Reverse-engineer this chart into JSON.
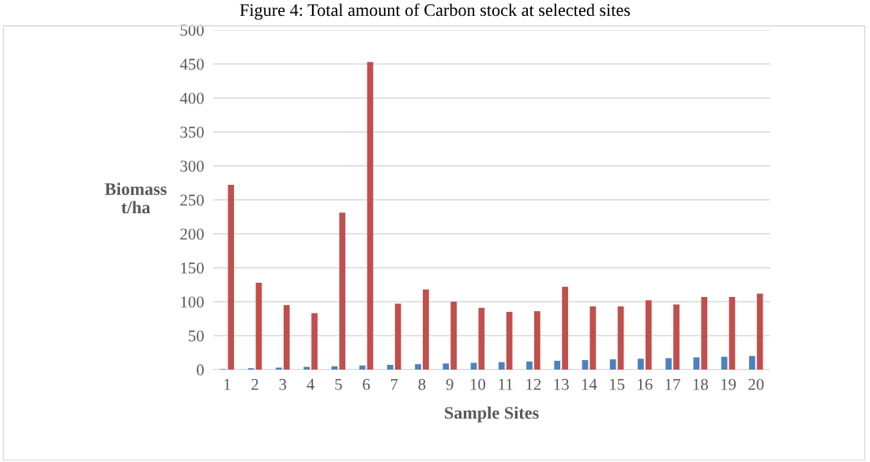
{
  "chart_data": {
    "type": "bar",
    "title": "Figure 4: Total amount of Carbon stock at selected sites",
    "xlabel": "Sample Sites",
    "ylabel": "Biomass\nt/ha",
    "categories": [
      "1",
      "2",
      "3",
      "4",
      "5",
      "6",
      "7",
      "8",
      "9",
      "10",
      "11",
      "12",
      "13",
      "14",
      "15",
      "16",
      "17",
      "18",
      "19",
      "20"
    ],
    "series": [
      {
        "color": "#4f81bd",
        "values": [
          1,
          2,
          3,
          4,
          5,
          6,
          7,
          8,
          9,
          10,
          11,
          12,
          13,
          14,
          15,
          16,
          17,
          18,
          19,
          20
        ]
      },
      {
        "color": "#c0504d",
        "values": [
          272,
          128,
          95,
          83,
          231,
          453,
          97,
          118,
          100,
          91,
          85,
          86,
          122,
          93,
          93,
          102,
          96,
          107,
          107,
          112
        ]
      }
    ],
    "ylim": [
      0,
      500
    ],
    "yticks": [
      0,
      50,
      100,
      150,
      200,
      250,
      300,
      350,
      400,
      450,
      500
    ],
    "grid": "y",
    "legend": false
  }
}
